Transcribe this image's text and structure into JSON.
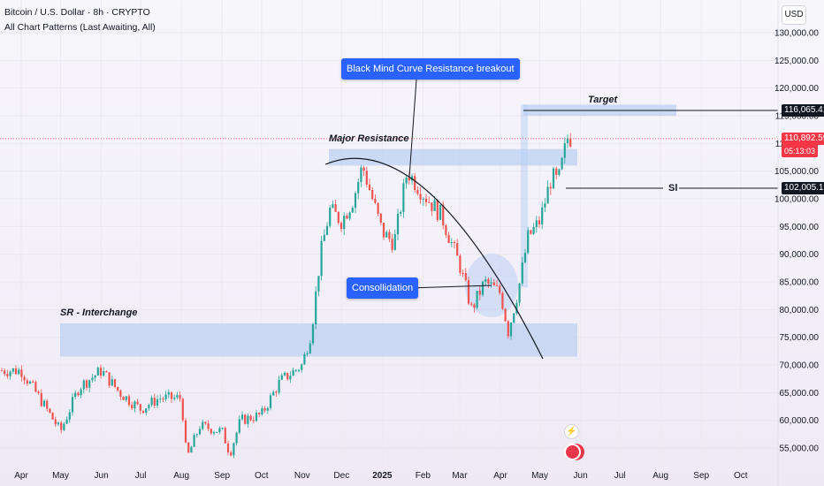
{
  "header": {
    "symbol_line": "Bitcoin / U.S. Dollar · 8h · CRYPTO",
    "indicator_line": "All Chart Patterns (Last Awaiting, All)"
  },
  "currency_button": "USD",
  "annotations": {
    "breakout_label": "Black Mind Curve Resistance breakout",
    "consolidation_label": "Consollidation",
    "major_resistance": "Major Resistance",
    "sr_interchange": "SR - Interchange",
    "target_label": "Target",
    "sl_label": "Sl"
  },
  "price_labels": {
    "target": "116,065.41",
    "current": "110,892.59",
    "countdown": "05:13:03",
    "sl": "102,005.15"
  },
  "colors": {
    "up": "#26a69a",
    "down": "#ef5350",
    "zone": "#bcd0f2",
    "accent": "#2962ff",
    "dark_label": "#131722",
    "current_price": "#f23645"
  },
  "chart_data": {
    "type": "line",
    "title": "Bitcoin / U.S. Dollar · 8h · CRYPTO",
    "x_ticks": [
      "Apr",
      "May",
      "Jun",
      "Jul",
      "Aug",
      "Sep",
      "Oct",
      "Nov",
      "Dec",
      "2025",
      "Feb",
      "Mar",
      "Apr",
      "May",
      "Jun",
      "Jul",
      "Aug",
      "Sep",
      "Oct"
    ],
    "y_ticks": [
      "130,000.00",
      "125,000.00",
      "120,000.00",
      "115,000.00",
      "110,000.00",
      "105,000.00",
      "100,000.00",
      "95,000.00",
      "90,000.00",
      "85,000.00",
      "80,000.00",
      "75,000.00",
      "70,000.00",
      "65,000.00",
      "60,000.00",
      "55,000.00"
    ],
    "ylim": [
      52000,
      134000
    ],
    "series": [
      {
        "values_note": "approximate BTC/USD closes, roughly semi-monthly from Apr 2024 to late May 2025",
        "x": [
          "2024-04-01",
          "2024-04-15",
          "2024-05-01",
          "2024-05-15",
          "2024-06-01",
          "2024-06-15",
          "2024-07-01",
          "2024-07-15",
          "2024-08-01",
          "2024-08-05",
          "2024-08-15",
          "2024-09-01",
          "2024-09-07",
          "2024-09-15",
          "2024-10-01",
          "2024-10-15",
          "2024-11-01",
          "2024-11-08",
          "2024-11-15",
          "2024-11-22",
          "2024-12-01",
          "2024-12-10",
          "2024-12-17",
          "2025-01-01",
          "2025-01-10",
          "2025-01-20",
          "2025-02-01",
          "2025-02-15",
          "2025-03-01",
          "2025-03-10",
          "2025-03-20",
          "2025-04-01",
          "2025-04-07",
          "2025-04-15",
          "2025-04-22",
          "2025-05-01",
          "2025-05-10",
          "2025-05-15",
          "2025-05-22"
        ],
        "values": [
          69000,
          64000,
          58000,
          66000,
          69000,
          65000,
          62000,
          64000,
          64000,
          53000,
          59000,
          58000,
          54000,
          60000,
          61000,
          67000,
          70000,
          76000,
          90000,
          98000,
          96000,
          100000,
          106000,
          94000,
          92000,
          105000,
          101000,
          97000,
          88000,
          80000,
          85000,
          83000,
          76000,
          84000,
          93000,
          96000,
          104000,
          103000,
          111000
        ]
      }
    ],
    "annotations": [
      {
        "label": "Major Resistance",
        "type": "zone",
        "y_from": 106000,
        "y_to": 109000,
        "x_from": "2024-11-20",
        "x_to": "2025-05-22"
      },
      {
        "label": "SR - Interchange",
        "type": "zone",
        "y_from": 71500,
        "y_to": 77500,
        "x_from": "2024-04-20",
        "x_to": "2025-05-22"
      },
      {
        "label": "Target",
        "type": "zone",
        "y_from": 115000,
        "y_to": 117000,
        "x_from": "2025-04-22",
        "x_to": "2025-08-20"
      },
      {
        "label": "Sl",
        "type": "level",
        "y": 102005.15
      }
    ]
  }
}
